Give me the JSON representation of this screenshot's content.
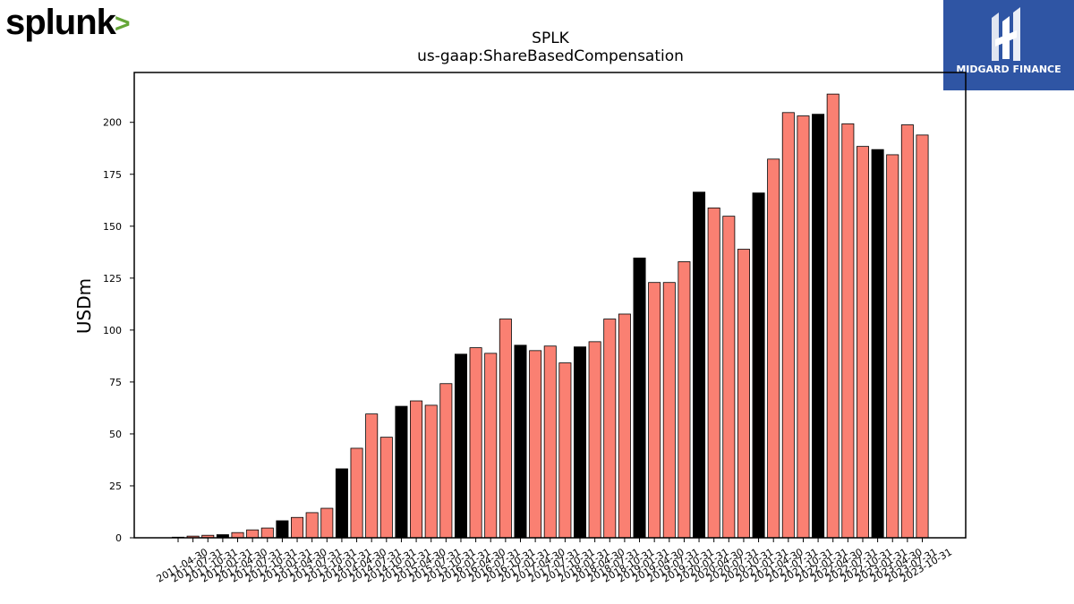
{
  "brand": {
    "left_logo_text": "splunk",
    "left_logo_mark": ">",
    "right_logo_text": "MIDGARD FINANCE",
    "colors": {
      "splunk_text": "#000000",
      "splunk_chevron": "#65a637",
      "midgard_bg": "#2f55a4",
      "midgard_fg": "#ffffff"
    }
  },
  "chart_data": {
    "type": "bar",
    "title": "SPLK",
    "subtitle": "us-gaap:ShareBasedCompensation",
    "ylabel": "USDm",
    "xlabel": "",
    "ylim": [
      0,
      224
    ],
    "yticks": [
      0,
      25,
      50,
      75,
      100,
      125,
      150,
      175,
      200
    ],
    "grid": false,
    "colors": {
      "quarter": "#fa8072",
      "fiscal_year": "#000000"
    },
    "categories": [
      "2011-04-30",
      "2011-07-31",
      "2011-10-31",
      "2012-01-31",
      "2012-04-30",
      "2012-07-31",
      "2012-10-31",
      "2013-01-31",
      "2013-04-30",
      "2013-07-31",
      "2013-10-31",
      "2014-01-31",
      "2014-04-30",
      "2014-07-31",
      "2014-10-31",
      "2015-01-31",
      "2015-04-30",
      "2015-07-31",
      "2015-10-31",
      "2016-01-31",
      "2016-04-30",
      "2016-07-31",
      "2016-10-31",
      "2017-01-31",
      "2017-04-30",
      "2017-07-31",
      "2017-10-31",
      "2018-01-31",
      "2018-04-30",
      "2018-07-31",
      "2018-10-31",
      "2019-01-31",
      "2019-04-30",
      "2019-07-31",
      "2019-10-31",
      "2020-01-31",
      "2020-04-30",
      "2020-07-31",
      "2020-10-31",
      "2021-01-31",
      "2021-04-30",
      "2021-07-31",
      "2021-10-31",
      "2022-01-31",
      "2022-04-30",
      "2022-07-31",
      "2022-10-31",
      "2023-01-31",
      "2023-04-30",
      "2023-07-31",
      "2023-10-31"
    ],
    "values": [
      0.3,
      0.8,
      1.2,
      1.5,
      2.5,
      3.8,
      4.7,
      8.2,
      9.8,
      12.1,
      14.2,
      33.2,
      43.1,
      59.6,
      48.4,
      63.3,
      65.9,
      63.8,
      74.2,
      88.4,
      91.5,
      88.8,
      105.3,
      92.7,
      90.1,
      92.3,
      84.2,
      91.9,
      94.4,
      105.3,
      107.7,
      134.7,
      122.9,
      122.9,
      132.9,
      166.4,
      158.8,
      154.8,
      138.9,
      166.0,
      182.3,
      204.7,
      203.1,
      203.9,
      213.6,
      199.3,
      188.4,
      186.9,
      184.4,
      198.8,
      193.9
    ],
    "bar_type": [
      "q",
      "q",
      "q",
      "fy",
      "q",
      "q",
      "q",
      "fy",
      "q",
      "q",
      "q",
      "fy",
      "q",
      "q",
      "q",
      "fy",
      "q",
      "q",
      "q",
      "fy",
      "q",
      "q",
      "q",
      "fy",
      "q",
      "q",
      "q",
      "fy",
      "q",
      "q",
      "q",
      "fy",
      "q",
      "q",
      "q",
      "fy",
      "q",
      "q",
      "q",
      "fy",
      "q",
      "q",
      "q",
      "fy",
      "q",
      "q",
      "q",
      "fy",
      "q",
      "q",
      "q"
    ]
  }
}
